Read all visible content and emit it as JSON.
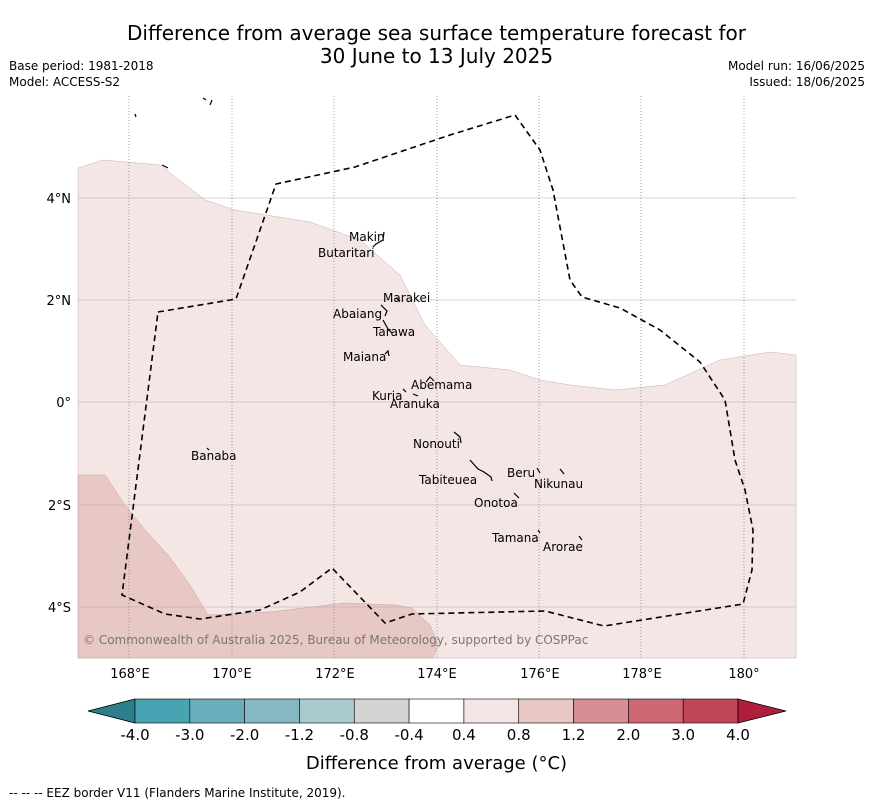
{
  "title_line1": "Difference from average sea surface temperature forecast for",
  "title_line2": "30 June to 13 July 2025",
  "meta": {
    "base_period": "Base period: 1981-2018",
    "model": "Model: ACCESS-S2",
    "model_run": "Model run: 16/06/2025",
    "issued": "Issued: 18/06/2025"
  },
  "map": {
    "lat_labels": [
      "4°N",
      "2°N",
      "0°",
      "2°S",
      "4°S"
    ],
    "lon_labels": [
      "168°E",
      "170°E",
      "172°E",
      "174°E",
      "176°E",
      "178°E",
      "180°"
    ],
    "copyright": "© Commonwealth of Australia 2025, Bureau of Meteorology, supported by COSPPac",
    "islands": [
      {
        "name": "Makin"
      },
      {
        "name": "Butaritari"
      },
      {
        "name": "Marakei"
      },
      {
        "name": "Abaiang"
      },
      {
        "name": "Tarawa"
      },
      {
        "name": "Maiana"
      },
      {
        "name": "Abemama"
      },
      {
        "name": "Kuria"
      },
      {
        "name": "Aranuka"
      },
      {
        "name": "Nonouti"
      },
      {
        "name": "Banaba"
      },
      {
        "name": "Beru"
      },
      {
        "name": "Tabiteuea"
      },
      {
        "name": "Nikunau"
      },
      {
        "name": "Onotoa"
      },
      {
        "name": "Tamana"
      },
      {
        "name": "Arorae"
      }
    ]
  },
  "colorbar": {
    "ticks": [
      "-4.0",
      "-3.0",
      "-2.0",
      "-1.2",
      "-0.8",
      "-0.4",
      "0.4",
      "0.8",
      "1.2",
      "2.0",
      "3.0",
      "4.0"
    ],
    "colors": {
      "under": "#2e7f8e",
      "bins": [
        "#48a3b2",
        "#6aaebc",
        "#86b8c3",
        "#a8cace",
        "#d3d3d3",
        "#ffffff",
        "#f3e6e5",
        "#e7c8c4",
        "#d88e95",
        "#cd6773",
        "#c04656"
      ],
      "over": "#b01e3c"
    },
    "label": "Difference from average (°C)"
  },
  "footer": "--  --  -- EEZ border V11 (Flanders Marine Institute, 2019)."
}
